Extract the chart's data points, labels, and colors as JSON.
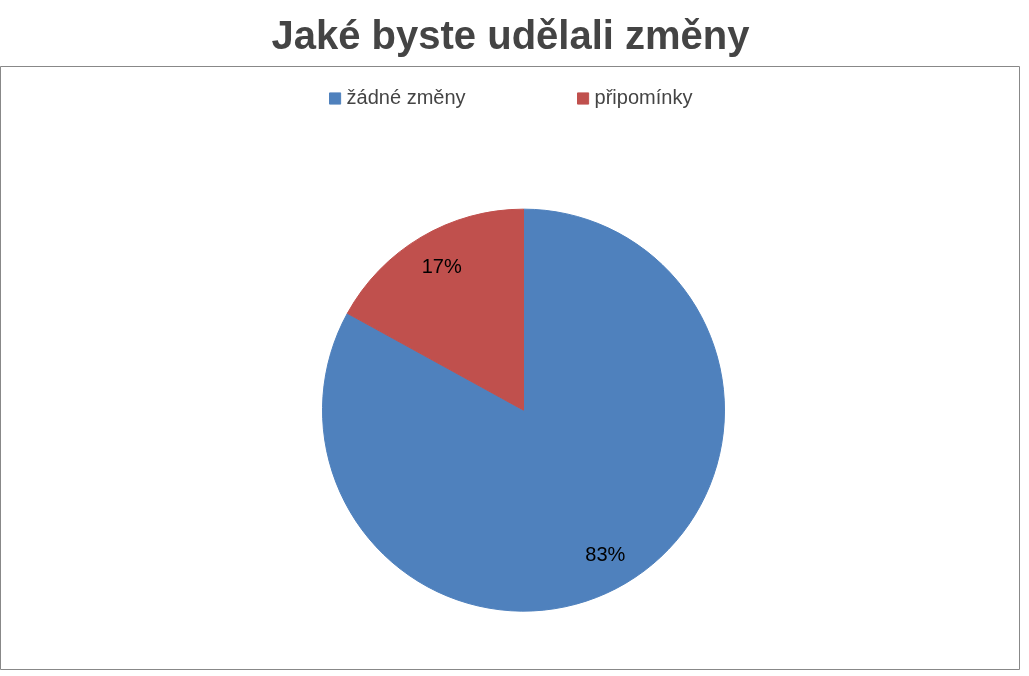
{
  "chart_data": {
    "type": "pie",
    "title": "Jaké byste udělali změny",
    "categories": [
      "žádné změny",
      "připomínky"
    ],
    "values": [
      83,
      17
    ],
    "colors": [
      "#4f81bd",
      "#c0504d"
    ],
    "value_labels": [
      "83%",
      "17%"
    ],
    "legend": "top"
  }
}
